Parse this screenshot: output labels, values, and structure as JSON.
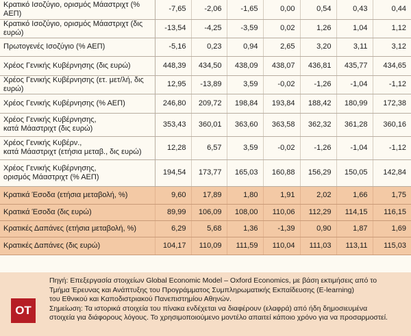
{
  "rows": [
    {
      "label": "Κρατικό Ισοζύγιο, ορισμός Μάαστριχτ (% ΑΕΠ)",
      "values": [
        "-7,65",
        "-2,06",
        "-1,65",
        "0,00",
        "0,54",
        "0,43",
        "0,44"
      ]
    },
    {
      "label": "Κρατικό Ισοζύγιο, ορισμός Μάαστριχτ (δις ευρώ)",
      "values": [
        "-13,54",
        "-4,25",
        "-3,59",
        "0,02",
        "1,26",
        "1,04",
        "1,12"
      ]
    },
    {
      "label": "Πρωτογενές Ισοζύγιο (% ΑΕΠ)",
      "values": [
        "-5,16",
        "0,23",
        "0,94",
        "2,65",
        "3,20",
        "3,11",
        "3,12"
      ]
    },
    {
      "label": "Χρέος Γενικής Κυβέρνησης (δις ευρώ)",
      "values": [
        "448,39",
        "434,50",
        "438,09",
        "438,07",
        "436,81",
        "435,77",
        "434,65"
      ]
    },
    {
      "label": "Χρέος Γενικής Κυβέρνησης (ετ. μετ/λή, δις ευρώ)",
      "values": [
        "12,95",
        "-13,89",
        "3,59",
        "-0,02",
        "-1,26",
        "-1,04",
        "-1,12"
      ]
    },
    {
      "label": "Χρέος Γενικής Κυβέρνησης (% ΑΕΠ)",
      "values": [
        "246,80",
        "209,72",
        "198,84",
        "193,84",
        "188,42",
        "180,99",
        "172,38"
      ]
    },
    {
      "label": "Χρέος Γενικής Κυβέρνησης,\nκατά Μάαστριχτ (δις ευρώ)",
      "values": [
        "353,43",
        "360,01",
        "363,60",
        "363,58",
        "362,32",
        "361,28",
        "360,16"
      ]
    },
    {
      "label": "Χρέος Γενικής Κυβέρν.,\nκατά Μάαστριχτ (ετήσια μεταβ., δις ευρώ)",
      "values": [
        "12,28",
        "6,57",
        "3,59",
        "-0,02",
        "-1,26",
        "-1,04",
        "-1,12"
      ]
    },
    {
      "label": "Χρέος Γενικής Κυβέρνησης,\nορισμός Μάαστριχτ (% ΑΕΠ)",
      "values": [
        "194,54",
        "173,77",
        "165,03",
        "160,88",
        "156,29",
        "150,05",
        "142,84"
      ]
    },
    {
      "label": "Κρατικά Έσοδα (ετήσια μεταβολή, %)",
      "values": [
        "9,60",
        "17,89",
        "1,80",
        "1,91",
        "2,02",
        "1,66",
        "1,75"
      ]
    },
    {
      "label": "Κρατικά Έσοδα (δις ευρώ)",
      "values": [
        "89,99",
        "106,09",
        "108,00",
        "110,06",
        "112,29",
        "114,15",
        "116,15"
      ]
    },
    {
      "label": "Κρατικές Δαπάνες (ετήσια μεταβολή, %)",
      "values": [
        "6,29",
        "5,68",
        "1,36",
        "-1,39",
        "0,90",
        "1,87",
        "1,69"
      ]
    },
    {
      "label": "Κρατικές Δαπάνες (δις ευρώ)",
      "values": [
        "104,17",
        "110,09",
        "111,59",
        "110,04",
        "111,03",
        "113,11",
        "115,03"
      ]
    }
  ],
  "footer": {
    "logo": "OT",
    "source_line_1": "Πηγή: Επεξεργασία στοιχείων Global Economic Model – Oxford Economics, με βάση εκτιμήσεις από το",
    "source_line_2": "Τμήμα Έρευνας και Ανάπτυξης του Προγράμματος Συμπληρωματικής Εκπαίδευσης (E-learning)",
    "source_line_3": "του Εθνικού και Καποδιστριακού Πανεπιστημίου Αθηνών.",
    "note_line_1": "Σημείωση: Τα ιστορικά στοιχεία του πίνακα ενδέχεται να διαφέρουν (ελαφρά) από ήδη δημοσιευμένα",
    "note_line_2": "στοιχεία για διάφορους λόγους. Το χρησιμοποιούμενο μοντέλο απαιτεί κάποιο χρόνο για να προσαρμοστεί."
  }
}
